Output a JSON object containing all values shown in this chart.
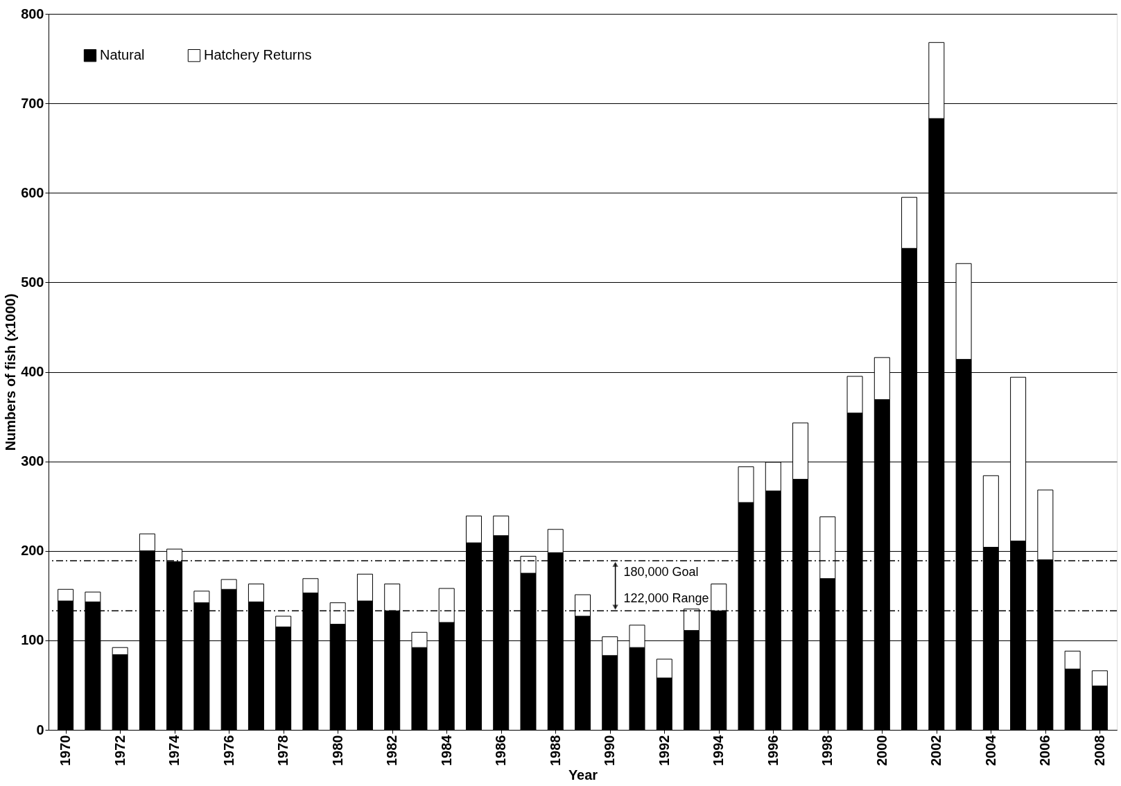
{
  "chart_data": {
    "type": "bar",
    "stacked": true,
    "xlabel": "Year",
    "ylabel": "Numbers of fish (x1000)",
    "categories": [
      "1970",
      null,
      "1972",
      null,
      "1974",
      null,
      "1976",
      null,
      "1978",
      null,
      "1980",
      null,
      "1982",
      null,
      "1984",
      null,
      "1986",
      null,
      "1988",
      null,
      "1990",
      null,
      "1992",
      null,
      "1994",
      null,
      "1996",
      null,
      "1998",
      null,
      "2000",
      null,
      "2002",
      null,
      "2004",
      null,
      "2006",
      null,
      "2008"
    ],
    "series": [
      {
        "name": "Natural",
        "color": "#000000",
        "values": [
          144,
          143,
          84,
          200,
          188,
          142,
          157,
          143,
          115,
          153,
          118,
          144,
          133,
          92,
          120,
          209,
          217,
          175,
          198,
          127,
          83,
          92,
          58,
          111,
          133,
          254,
          267,
          280,
          169,
          354,
          369,
          538,
          683,
          414,
          204,
          211,
          190,
          68,
          49
        ]
      },
      {
        "name": "Hatchery Returns",
        "color": "#ffffff",
        "values": [
          13,
          11,
          8,
          19,
          14,
          13,
          11,
          20,
          12,
          16,
          24,
          30,
          30,
          17,
          38,
          30,
          22,
          19,
          26,
          24,
          21,
          25,
          21,
          24,
          30,
          40,
          32,
          63,
          69,
          41,
          47,
          57,
          85,
          107,
          80,
          183,
          78,
          20,
          17
        ]
      }
    ],
    "ylim": [
      0,
      800
    ],
    "yticks": [
      0,
      100,
      200,
      300,
      400,
      500,
      600,
      700,
      800
    ],
    "grid": "y",
    "legend": "top left",
    "ref_lines": [
      {
        "axis": "y",
        "value": 189,
        "label": "180,000  Goal",
        "line_style": "dashdot"
      },
      {
        "axis": "y",
        "value": 133,
        "label": "122,000 Range",
        "line_style": "dashdot"
      }
    ]
  }
}
